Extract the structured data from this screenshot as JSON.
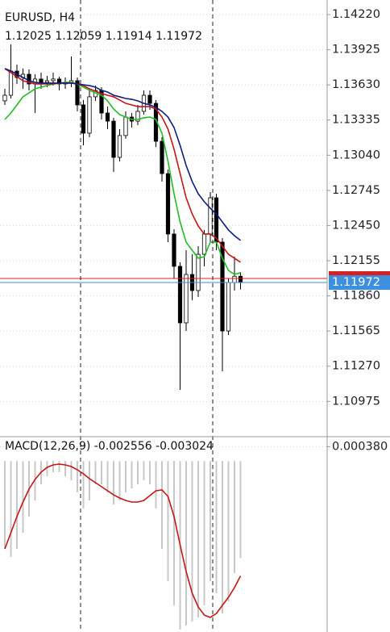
{
  "chart_data": [
    {
      "type": "candlestick",
      "title": "EURUSD, H4",
      "open": [
        1.13496,
        1.13543,
        1.13746,
        1.13692,
        1.13719,
        1.13638,
        1.13679,
        1.13651,
        1.13665,
        1.13679,
        1.13638,
        1.13651,
        1.13665,
        1.13462,
        1.13225,
        1.1353,
        1.13584,
        1.13394,
        1.13326,
        1.13022,
        1.13205,
        1.1336,
        1.13326,
        1.13408,
        1.13543,
        1.13475,
        1.13157,
        1.12886,
        1.12379,
        1.12108,
        1.11634,
        1.1204,
        1.11905,
        1.12209,
        1.12379,
        1.12683,
        1.12311,
        1.11566,
        1.11972,
        1.12025
      ],
      "high": [
        1.13597,
        1.1397,
        1.138,
        1.13767,
        1.1376,
        1.13719,
        1.13733,
        1.13706,
        1.13733,
        1.13699,
        1.13692,
        1.13868,
        1.13692,
        1.13503,
        1.13597,
        1.13624,
        1.13611,
        1.13448,
        1.13354,
        1.13259,
        1.13408,
        1.13394,
        1.13462,
        1.13584,
        1.13584,
        1.13503,
        1.13191,
        1.1292,
        1.12419,
        1.12142,
        1.12243,
        1.12209,
        1.12277,
        1.12413,
        1.12731,
        1.12717,
        1.12345,
        1.12006,
        1.12189,
        1.12059
      ],
      "low": [
        1.13462,
        1.13516,
        1.13638,
        1.13597,
        1.13584,
        1.13394,
        1.13597,
        1.13611,
        1.13624,
        1.13584,
        1.13597,
        1.13611,
        1.13408,
        1.13123,
        1.13191,
        1.13496,
        1.1334,
        1.13259,
        1.129,
        1.12988,
        1.13178,
        1.13272,
        1.13293,
        1.13381,
        1.13421,
        1.1311,
        1.12819,
        1.12311,
        1.12006,
        1.11072,
        1.11566,
        1.11824,
        1.11851,
        1.12108,
        1.12311,
        1.12243,
        1.11228,
        1.11532,
        1.11905,
        1.11914
      ],
      "close": [
        1.13543,
        1.13746,
        1.13692,
        1.13719,
        1.13638,
        1.13679,
        1.13651,
        1.13665,
        1.13679,
        1.13638,
        1.13651,
        1.13665,
        1.13462,
        1.13225,
        1.1353,
        1.13584,
        1.13394,
        1.13326,
        1.13022,
        1.13205,
        1.1336,
        1.13326,
        1.13408,
        1.13543,
        1.13475,
        1.13157,
        1.12886,
        1.12379,
        1.12108,
        1.11634,
        1.1204,
        1.11905,
        1.12209,
        1.12379,
        1.12683,
        1.12311,
        1.11566,
        1.11972,
        1.12025,
        1.11972
      ],
      "up_color": "#ffffff",
      "down_color": "#000000",
      "outline_color": "#000000",
      "series": [
        {
          "color": "#1fbf1f",
          "values": [
            1.1334,
            1.13394,
            1.13462,
            1.1353,
            1.13563,
            1.13597,
            1.13611,
            1.13624,
            1.13638,
            1.13645,
            1.13651,
            1.13651,
            1.13638,
            1.13611,
            1.13584,
            1.13563,
            1.13543,
            1.13496,
            1.13428,
            1.13381,
            1.1336,
            1.1334,
            1.1334,
            1.13354,
            1.1336,
            1.1334,
            1.13225,
            1.12988,
            1.12717,
            1.1248,
            1.12311,
            1.12243,
            1.12176,
            1.12189,
            1.12311,
            1.12311,
            1.12176,
            1.12074,
            1.1204,
            1.12054
          ]
        },
        {
          "color": "#c81414",
          "values": [
            1.13767,
            1.13733,
            1.13699,
            1.13665,
            1.13651,
            1.13638,
            1.13638,
            1.13638,
            1.13638,
            1.13645,
            1.13645,
            1.13645,
            1.13638,
            1.13624,
            1.13597,
            1.13577,
            1.13557,
            1.13543,
            1.1353,
            1.13503,
            1.13475,
            1.13462,
            1.13448,
            1.13448,
            1.13448,
            1.13428,
            1.1336,
            1.13259,
            1.1309,
            1.12886,
            1.12683,
            1.12548,
            1.12446,
            1.12379,
            1.12379,
            1.12345,
            1.12277,
            1.12209,
            1.12176,
            1.12142
          ]
        },
        {
          "color": "#0b1f80",
          "values": [
            1.13767,
            1.13746,
            1.13719,
            1.13692,
            1.13665,
            1.13651,
            1.13645,
            1.13645,
            1.13645,
            1.13645,
            1.13645,
            1.13645,
            1.13638,
            1.13631,
            1.13624,
            1.13611,
            1.13584,
            1.1357,
            1.13543,
            1.1353,
            1.13516,
            1.13509,
            1.13496,
            1.13475,
            1.13462,
            1.13442,
            1.13408,
            1.1336,
            1.13272,
            1.13123,
            1.12954,
            1.12819,
            1.12717,
            1.1265,
            1.12595,
            1.12548,
            1.1248,
            1.12413,
            1.12365,
            1.12325
          ]
        }
      ],
      "bid_color": "#3d8fe0",
      "ask_line": 1.12006,
      "ask_color": "#d42020",
      "ylim": [
        1.10686,
        1.14342
      ],
      "yticks": [
        {
          "value": 1.1422,
          "label": "1.14220"
        },
        1.13925,
        {
          "value": 1.1363,
          "label": "1.13630"
        },
        1.13335,
        {
          "value": 1.1304,
          "label": "1.13040"
        },
        1.12745,
        {
          "value": 1.1245,
          "label": "1.12450"
        },
        1.12155,
        {
          "value": 1.1186,
          "label": "1.11860"
        },
        1.11565,
        {
          "value": 1.1127,
          "label": "1.11270"
        },
        1.10975
      ],
      "grid": true
    },
    {
      "type": "macd",
      "title": "MACD(12,26,9)",
      "histogram": {
        "color": "#c8c8c8",
        "values": [
          -0.002311,
          -0.002524,
          -0.002311,
          -0.001886,
          -0.001461,
          -0.001036,
          -0.000611,
          -0.000399,
          -0.000293,
          -0.000293,
          -0.000399,
          -0.000505,
          -0.000824,
          -0.001249,
          -0.001036,
          -0.000611,
          -0.000611,
          -0.000824,
          -0.001143,
          -0.001036,
          -0.000824,
          -0.000718,
          -0.000611,
          -0.000505,
          -0.000611,
          -0.001249,
          -0.002311,
          -0.003161,
          -0.003799,
          -0.004436,
          -0.00433,
          -0.004224,
          -0.004118,
          -0.003799,
          -0.003161,
          -0.00348,
          -0.004011,
          -0.003693,
          -0.002949,
          -0.002556
        ]
      },
      "signal": {
        "color": "#c81414",
        "values": [
          -0.002311,
          -0.001886,
          -0.001461,
          -0.001079,
          -0.000739,
          -0.000484,
          -0.000293,
          -0.000165,
          -0.000101,
          -8e-05,
          -0.000101,
          -0.000144,
          -0.000229,
          -0.000335,
          -0.000463,
          -0.000569,
          -0.000675,
          -0.000781,
          -0.000888,
          -0.000973,
          -0.001036,
          -0.001079,
          -0.001079,
          -0.001036,
          -0.000909,
          -0.000781,
          -0.00076,
          -0.00093,
          -0.001461,
          -0.002205,
          -0.002906,
          -0.00348,
          -0.003841,
          -0.004054,
          -0.004118,
          -0.004011,
          -0.003799,
          -0.003586,
          -0.003331,
          -0.003024
        ]
      },
      "ylim": [
        -0.0045,
        0.0006
      ],
      "yticks": [
        {
          "value": 0.00038,
          "label": "0.000380"
        }
      ],
      "grid": true
    }
  ]
}
